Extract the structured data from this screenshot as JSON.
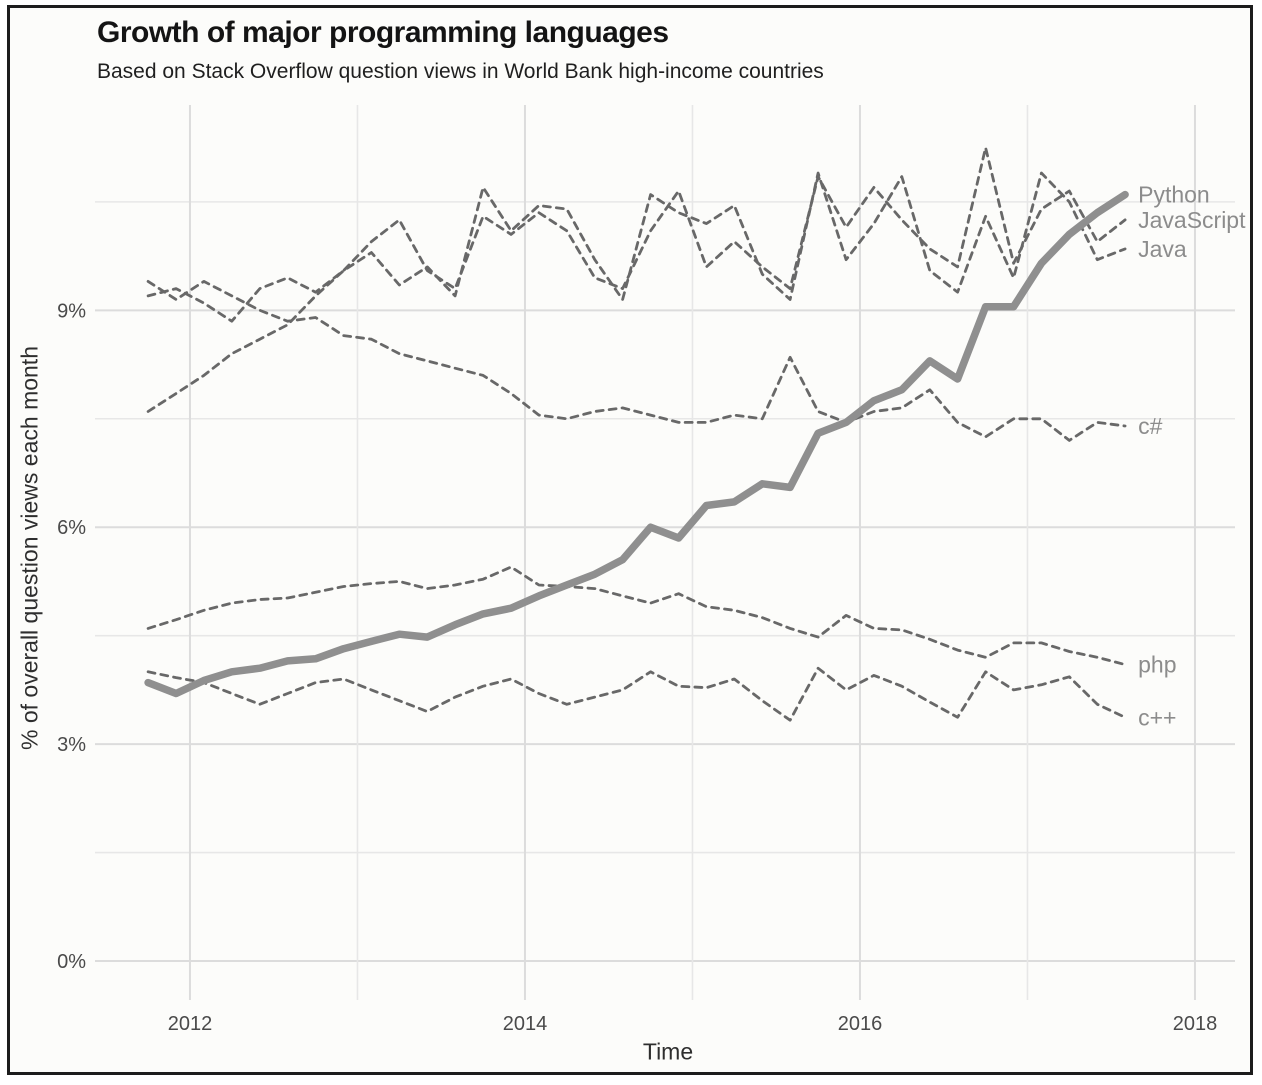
{
  "figure": {
    "title": "Growth of major programming languages",
    "subtitle": "Based on Stack Overflow question views in World Bank high-income countries"
  },
  "chart_data": {
    "type": "line",
    "title": "Growth of major programming languages",
    "subtitle": "Based on Stack Overflow question views in World Bank high-income countries",
    "xlabel": "Time",
    "ylabel": "% of overall question views each month",
    "x_unit": "year (decimal, monthly-smoothed share of Stack Overflow question views)",
    "xlim": [
      2011.433,
      2018.239
    ],
    "ylim": [
      -0.54,
      11.84
    ],
    "grid": true,
    "x_gridline_years": [
      2012,
      2013,
      2014,
      2015,
      2016,
      2017,
      2018
    ],
    "y_gridline_step": 1.5,
    "x_ticks": {
      "values": [
        2012,
        2014,
        2016,
        2018
      ],
      "labels": [
        "2012",
        "2014",
        "2016",
        "2018"
      ]
    },
    "y_ticks": {
      "values": [
        0,
        3,
        6,
        9
      ],
      "labels": [
        "0%",
        "3%",
        "6%",
        "9%"
      ]
    },
    "legend": "direct-labels-at-line-end",
    "colors": {
      "python_line": "#8f8f8f",
      "dashed_line": "#686868",
      "series_label": "#8c8c8c",
      "tick_label": "#4a4a4a",
      "grid_major": "#dcdcdc",
      "grid_minor": "#e7e7e7",
      "frame": "#1c1c1c"
    },
    "x": [
      2011.75,
      2011.917,
      2012.083,
      2012.25,
      2012.417,
      2012.583,
      2012.75,
      2012.917,
      2013.083,
      2013.25,
      2013.417,
      2013.583,
      2013.75,
      2013.917,
      2014.083,
      2014.25,
      2014.417,
      2014.583,
      2014.75,
      2014.917,
      2015.083,
      2015.25,
      2015.417,
      2015.583,
      2015.75,
      2015.917,
      2016.083,
      2016.25,
      2016.417,
      2016.583,
      2016.75,
      2016.917,
      2017.083,
      2017.25,
      2017.417,
      2017.583
    ],
    "series": [
      {
        "name": "JavaScript",
        "style": "dashed",
        "color": "#686868",
        "line_width": 2.8,
        "end_label": "JavaScript",
        "values": [
          9.2,
          9.3,
          9.1,
          8.85,
          9.3,
          9.45,
          9.25,
          9.55,
          9.95,
          10.25,
          9.55,
          9.3,
          10.3,
          10.05,
          10.35,
          10.1,
          9.45,
          9.3,
          10.1,
          10.65,
          9.6,
          9.95,
          9.6,
          9.3,
          10.85,
          10.15,
          10.7,
          10.25,
          9.85,
          9.6,
          11.25,
          9.65,
          10.4,
          10.65,
          9.95,
          10.25
        ]
      },
      {
        "name": "Java",
        "style": "dashed",
        "color": "#686868",
        "line_width": 2.8,
        "end_label": "Java",
        "values": [
          7.6,
          7.85,
          8.1,
          8.4,
          8.6,
          8.8,
          9.2,
          9.55,
          9.8,
          9.35,
          9.6,
          9.2,
          10.7,
          10.1,
          10.45,
          10.4,
          9.7,
          9.15,
          10.6,
          10.35,
          10.2,
          10.45,
          9.5,
          9.15,
          10.9,
          9.7,
          10.2,
          10.85,
          9.55,
          9.25,
          10.3,
          9.45,
          10.9,
          10.5,
          9.7,
          9.85
        ]
      },
      {
        "name": "c#",
        "style": "dashed",
        "color": "#686868",
        "line_width": 2.8,
        "end_label": "c#",
        "values": [
          9.4,
          9.15,
          9.4,
          9.2,
          9.0,
          8.85,
          8.9,
          8.65,
          8.6,
          8.4,
          8.3,
          8.2,
          8.1,
          7.85,
          7.55,
          7.5,
          7.6,
          7.65,
          7.55,
          7.45,
          7.45,
          7.55,
          7.5,
          8.35,
          7.6,
          7.45,
          7.6,
          7.65,
          7.9,
          7.45,
          7.25,
          7.5,
          7.5,
          7.2,
          7.45,
          7.4
        ]
      },
      {
        "name": "php",
        "style": "dashed",
        "color": "#686868",
        "line_width": 2.8,
        "end_label": "php",
        "values": [
          4.6,
          4.72,
          4.85,
          4.95,
          5.0,
          5.02,
          5.1,
          5.18,
          5.22,
          5.25,
          5.15,
          5.2,
          5.28,
          5.45,
          5.2,
          5.18,
          5.15,
          5.05,
          4.95,
          5.08,
          4.9,
          4.85,
          4.75,
          4.6,
          4.48,
          4.78,
          4.6,
          4.58,
          4.45,
          4.3,
          4.2,
          4.4,
          4.4,
          4.28,
          4.2,
          4.1
        ]
      },
      {
        "name": "c++",
        "style": "dashed",
        "color": "#686868",
        "line_width": 2.8,
        "end_label": "c++",
        "values": [
          4.0,
          3.92,
          3.85,
          3.7,
          3.55,
          3.7,
          3.85,
          3.9,
          3.75,
          3.6,
          3.45,
          3.65,
          3.8,
          3.9,
          3.7,
          3.55,
          3.65,
          3.75,
          4.0,
          3.8,
          3.78,
          3.9,
          3.6,
          3.33,
          4.05,
          3.75,
          3.95,
          3.8,
          3.58,
          3.37,
          4.0,
          3.75,
          3.82,
          3.93,
          3.55,
          3.37
        ]
      },
      {
        "name": "Python",
        "style": "solid",
        "color": "#8f8f8f",
        "line_width": 7.5,
        "end_label": "Python",
        "values": [
          3.85,
          3.7,
          3.88,
          4.0,
          4.05,
          4.15,
          4.18,
          4.32,
          4.42,
          4.52,
          4.48,
          4.65,
          4.8,
          4.88,
          5.05,
          5.2,
          5.35,
          5.55,
          6.0,
          5.85,
          6.3,
          6.35,
          6.6,
          6.55,
          7.3,
          7.45,
          7.75,
          7.9,
          8.3,
          8.05,
          9.05,
          9.05,
          9.65,
          10.05,
          10.35,
          10.6
        ]
      }
    ]
  }
}
